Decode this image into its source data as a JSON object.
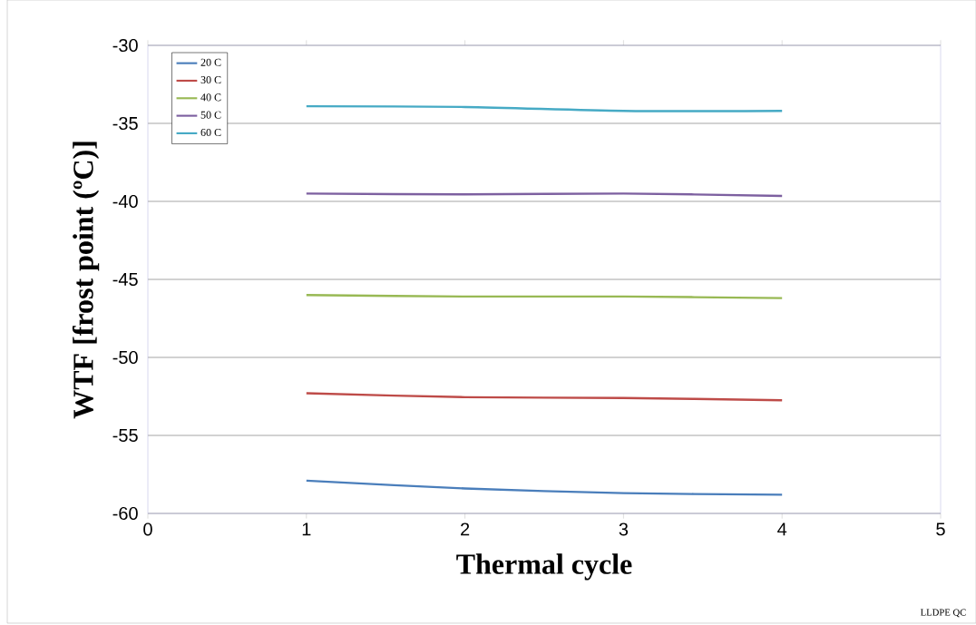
{
  "chart_data": {
    "type": "line",
    "xlabel": "Thermal cycle",
    "ylabel": "WTF [frost point (ºC)]",
    "x": [
      1,
      2,
      3,
      4
    ],
    "series": [
      {
        "name": "20 C",
        "color": "#4a7ebb",
        "values": [
          -57.9,
          -58.4,
          -58.7,
          -58.8
        ]
      },
      {
        "name": "30 C",
        "color": "#be4b48",
        "values": [
          -52.3,
          -52.55,
          -52.6,
          -52.75
        ]
      },
      {
        "name": "40 C",
        "color": "#98b954",
        "values": [
          -46.0,
          -46.1,
          -46.1,
          -46.2
        ]
      },
      {
        "name": "50 C",
        "color": "#7d60a0",
        "values": [
          -39.5,
          -39.55,
          -39.5,
          -39.65
        ]
      },
      {
        "name": "60 C",
        "color": "#46aac5",
        "values": [
          -33.9,
          -33.95,
          -34.2,
          -34.2
        ]
      }
    ],
    "xlim": [
      0,
      5
    ],
    "xticks": [
      0,
      1,
      2,
      3,
      4,
      5
    ],
    "ylim": [
      -60,
      -30
    ],
    "yticks": [
      -60,
      -55,
      -50,
      -45,
      -40,
      -35,
      -30
    ],
    "grid": "y",
    "legend": "top left",
    "marker": "none",
    "line_style": "solid",
    "annotations": [
      "LLDPE QC"
    ]
  }
}
